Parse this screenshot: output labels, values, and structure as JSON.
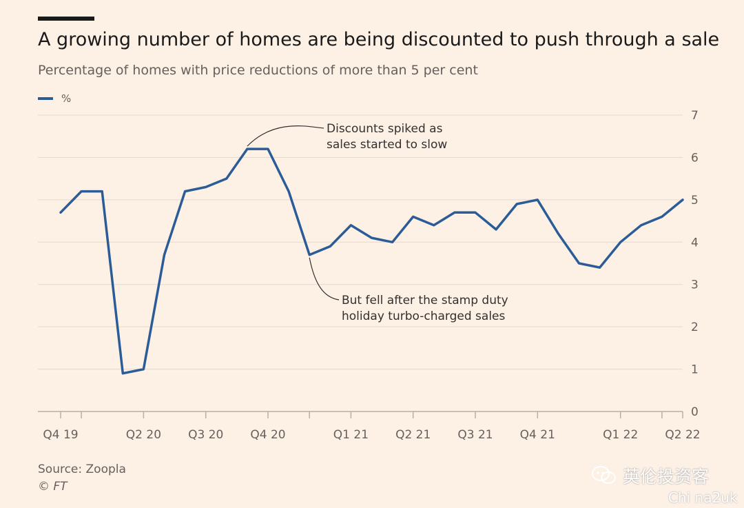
{
  "header": {
    "title": "A growing number of homes are being discounted to push through a sale",
    "subtitle": "Percentage of homes with price reductions of more than 5 per cent"
  },
  "legend": {
    "label": "%"
  },
  "footer": {
    "source": "Source: Zoopla",
    "copyright": "© FT"
  },
  "watermark": {
    "text": "英伦投资客",
    "subtext": "Chi na2uk"
  },
  "colors": {
    "line": "#2b5c97",
    "background": "#fdf1e6",
    "grid": "#e5d9cd",
    "axis_text": "#66605c"
  },
  "chart_data": {
    "type": "line",
    "title": "A growing number of homes are being discounted to push through a sale",
    "subtitle": "Percentage of homes with price reductions of more than 5 per cent",
    "ylim": [
      0,
      7
    ],
    "yticks": [
      0,
      1,
      2,
      3,
      4,
      5,
      6,
      7
    ],
    "y_axis_position": "right",
    "grid": true,
    "legend_placement": "top-left",
    "x_tick_labels": [
      {
        "index": 0,
        "label": "Q4 19"
      },
      {
        "index": 4,
        "label": "Q2 20"
      },
      {
        "index": 7,
        "label": "Q3 20"
      },
      {
        "index": 10,
        "label": "Q4 20"
      },
      {
        "index": 14,
        "label": "Q1 21"
      },
      {
        "index": 17,
        "label": "Q2 21"
      },
      {
        "index": 20,
        "label": "Q3 21"
      },
      {
        "index": 23,
        "label": "Q4 21"
      },
      {
        "index": 27,
        "label": "Q1 22"
      },
      {
        "index": 30,
        "label": "Q2 22"
      }
    ],
    "minor_tick_indices": [
      1,
      12,
      29
    ],
    "series": [
      {
        "name": "%",
        "values": [
          4.7,
          5.2,
          5.2,
          0.9,
          1.0,
          3.7,
          5.2,
          5.3,
          5.5,
          6.2,
          6.2,
          5.2,
          3.7,
          3.9,
          4.4,
          4.1,
          4.0,
          4.6,
          4.4,
          4.7,
          4.7,
          4.3,
          4.9,
          5.0,
          4.2,
          3.5,
          3.4,
          4.0,
          4.4,
          4.6,
          5.0
        ]
      }
    ],
    "annotations": [
      {
        "lines": [
          "Discounts spiked as",
          "sales started to slow"
        ],
        "point_index": 9
      },
      {
        "lines": [
          "But fell after the stamp duty",
          "holiday turbo-charged sales"
        ],
        "point_index": 12
      }
    ]
  }
}
